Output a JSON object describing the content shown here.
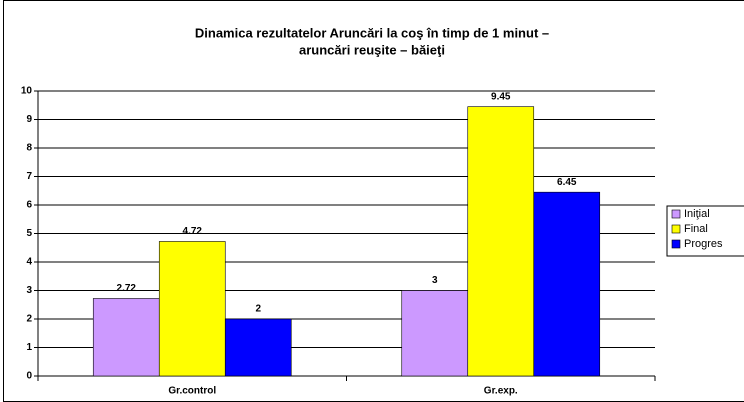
{
  "chart_data": {
    "type": "bar",
    "title": [
      "Dinamica rezultatelor Aruncări la coş în timp de 1 minut –",
      "aruncări reuşite – băieţi"
    ],
    "categories": [
      "Gr.control",
      "Gr.exp."
    ],
    "series": [
      {
        "name": "Iniţial",
        "color": "#cc99ff",
        "values": [
          2.72,
          3
        ]
      },
      {
        "name": "Final",
        "color": "#ffff00",
        "values": [
          4.72,
          9.45
        ]
      },
      {
        "name": "Progres",
        "color": "#0000ff",
        "values": [
          2,
          6.45
        ]
      }
    ],
    "ylim": [
      0,
      10
    ],
    "yticks": [
      0,
      1,
      2,
      3,
      4,
      5,
      6,
      7,
      8,
      9,
      10
    ],
    "grid": true,
    "legend": "right"
  }
}
